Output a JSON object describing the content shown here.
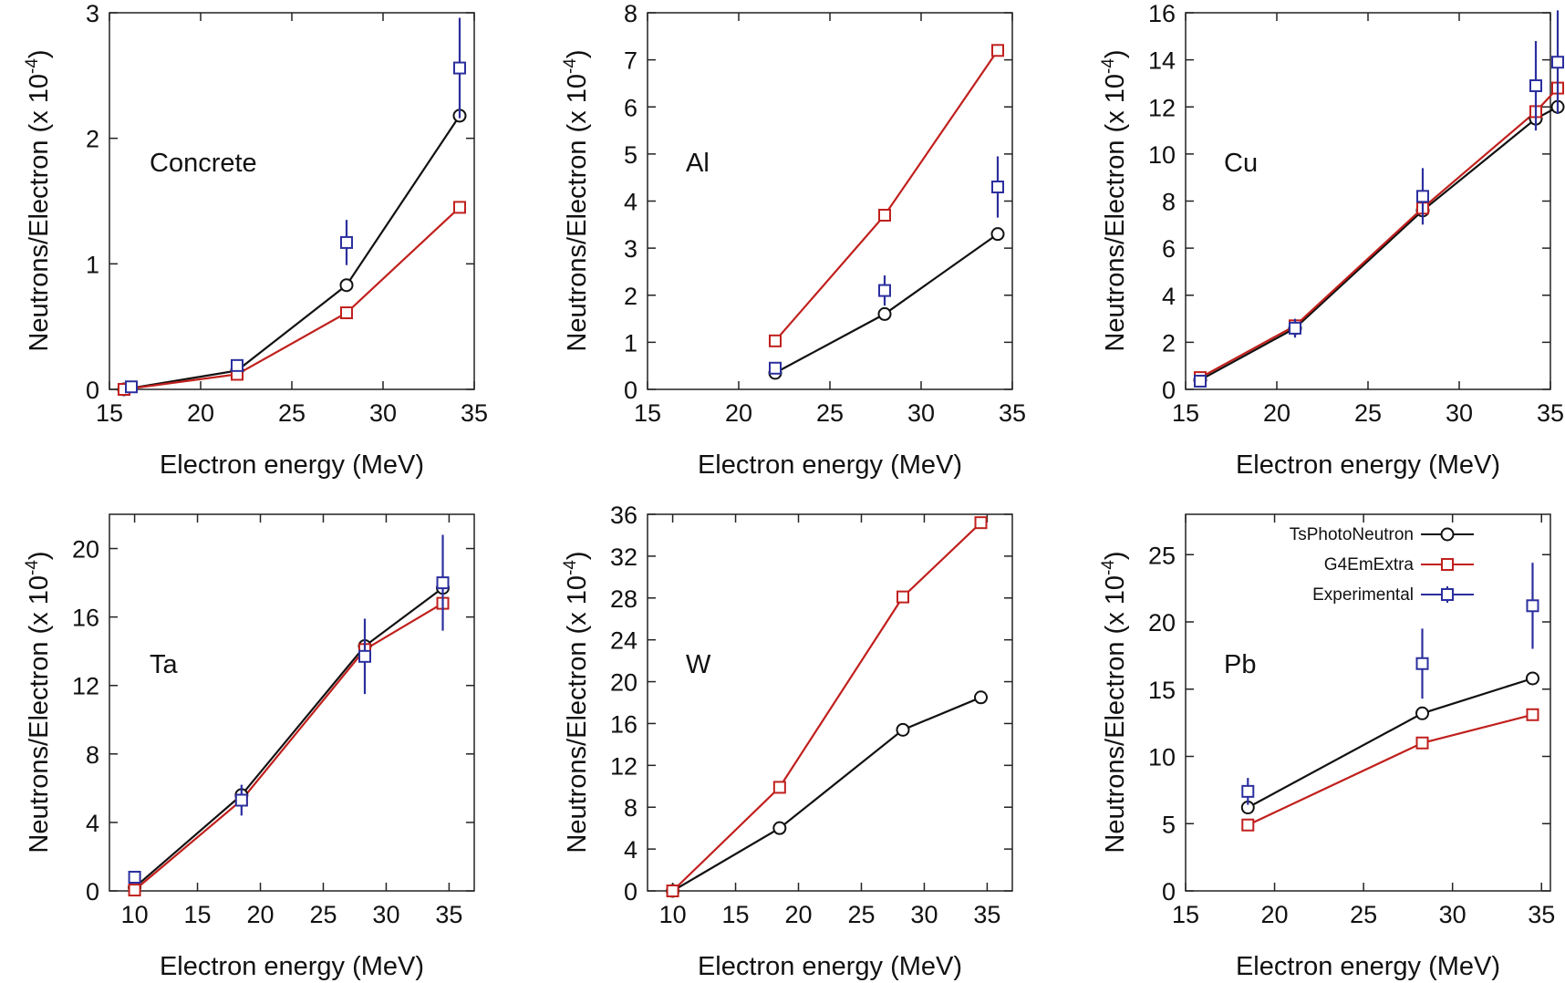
{
  "series_styles": [
    {
      "key": "tsphoto",
      "marker": "circle",
      "color": "#111111"
    },
    {
      "key": "g4em",
      "marker": "square",
      "color": "#c0201d"
    },
    {
      "key": "exp",
      "marker": "square",
      "color": "#2b2f9e",
      "errorbars": true,
      "connected": false
    }
  ],
  "legend": {
    "entries": [
      "TsPhotoNeutron",
      "G4EmExtra",
      "Experimental"
    ],
    "placement": "top-left of Pb panel"
  },
  "chart_data": [
    {
      "type": "line",
      "annotation": "Concrete",
      "xlabel": "Electron energy (MeV)",
      "ylabel_text": "Neutrons/Electron (x 10",
      "ylabel_exp": "-4",
      "ylabel_close": ")",
      "xlim": [
        15,
        35
      ],
      "ylim": [
        0,
        3
      ],
      "xticks": [
        "15",
        "20",
        "25",
        "30",
        "35"
      ],
      "yticks": [
        "0",
        "1",
        "2",
        "3"
      ],
      "series": [
        {
          "key": "tsphoto",
          "x": [
            15.8,
            22.0,
            28.0,
            34.2
          ],
          "y": [
            0.0,
            0.15,
            0.83,
            2.18
          ]
        },
        {
          "key": "g4em",
          "x": [
            15.8,
            22.0,
            28.0,
            34.2
          ],
          "y": [
            0.0,
            0.12,
            0.61,
            1.45
          ]
        },
        {
          "key": "exp",
          "x": [
            16.2,
            22.0,
            28.0,
            34.2
          ],
          "y": [
            0.02,
            0.19,
            1.17,
            2.56
          ],
          "err": [
            0.0,
            0.0,
            0.18,
            0.4
          ]
        }
      ]
    },
    {
      "type": "line",
      "annotation": "Al",
      "xlabel": "Electron energy (MeV)",
      "ylabel_text": "Neutrons/Electron (x 10",
      "ylabel_exp": "-4",
      "ylabel_close": ")",
      "xlim": [
        15,
        35
      ],
      "ylim": [
        0,
        8
      ],
      "xticks": [
        "15",
        "20",
        "25",
        "30",
        "35"
      ],
      "yticks": [
        "0",
        "1",
        "2",
        "3",
        "4",
        "5",
        "6",
        "7",
        "8"
      ],
      "series": [
        {
          "key": "tsphoto",
          "x": [
            22.0,
            28.0,
            34.2
          ],
          "y": [
            0.35,
            1.6,
            3.3
          ]
        },
        {
          "key": "g4em",
          "x": [
            22.0,
            28.0,
            34.2
          ],
          "y": [
            1.03,
            3.7,
            7.2
          ]
        },
        {
          "key": "exp",
          "x": [
            22.0,
            28.0,
            34.2
          ],
          "y": [
            0.45,
            2.1,
            4.3
          ],
          "err": [
            0.0,
            0.32,
            0.65
          ]
        }
      ]
    },
    {
      "type": "line",
      "annotation": "Cu",
      "xlabel": "Electron energy (MeV)",
      "ylabel_text": "Neutrons/Electron (x 10",
      "ylabel_exp": "-4",
      "ylabel_close": ")",
      "xlim": [
        15,
        35
      ],
      "ylim": [
        0,
        16
      ],
      "xticks": [
        "15",
        "20",
        "25",
        "30",
        "35"
      ],
      "yticks": [
        "0",
        "2",
        "4",
        "6",
        "8",
        "10",
        "12",
        "14",
        "16"
      ],
      "series": [
        {
          "key": "tsphoto",
          "x": [
            15.8,
            21.0,
            28.0,
            34.2,
            35.4
          ],
          "y": [
            0.4,
            2.6,
            7.6,
            11.5,
            12.0
          ]
        },
        {
          "key": "g4em",
          "x": [
            15.8,
            21.0,
            28.0,
            34.2,
            35.4
          ],
          "y": [
            0.5,
            2.7,
            7.7,
            11.8,
            12.8
          ]
        },
        {
          "key": "exp",
          "x": [
            15.8,
            21.0,
            28.0,
            34.2,
            35.4
          ],
          "y": [
            0.35,
            2.6,
            8.2,
            12.9,
            13.9
          ],
          "err": [
            0.0,
            0.4,
            1.2,
            1.9,
            2.2
          ]
        }
      ]
    },
    {
      "type": "line",
      "annotation": "Ta",
      "xlabel": "Electron energy (MeV)",
      "ylabel_text": "Neutrons/Electron (x 10",
      "ylabel_exp": "-4",
      "ylabel_close": ")",
      "xlim": [
        8,
        37
      ],
      "ylim": [
        0,
        22
      ],
      "xticks": [
        "10",
        "15",
        "20",
        "25",
        "30",
        "35"
      ],
      "yticks": [
        "0",
        "4",
        "8",
        "12",
        "16",
        "20"
      ],
      "series": [
        {
          "key": "tsphoto",
          "x": [
            10.0,
            18.5,
            28.3,
            34.5
          ],
          "y": [
            0.2,
            5.6,
            14.3,
            17.7
          ]
        },
        {
          "key": "g4em",
          "x": [
            10.0,
            18.5,
            28.3,
            34.5
          ],
          "y": [
            0.05,
            5.3,
            14.1,
            16.8
          ]
        },
        {
          "key": "exp",
          "x": [
            10.0,
            18.5,
            28.3,
            34.5
          ],
          "y": [
            0.8,
            5.3,
            13.7,
            18.0
          ],
          "err": [
            0.0,
            0.9,
            2.2,
            2.8
          ]
        }
      ]
    },
    {
      "type": "line",
      "annotation": "W",
      "xlabel": "Electron energy (MeV)",
      "ylabel_text": "Neutrons/Electron (x 10",
      "ylabel_exp": "-4",
      "ylabel_close": ")",
      "xlim": [
        8,
        37
      ],
      "ylim": [
        0,
        36
      ],
      "xticks": [
        "10",
        "15",
        "20",
        "25",
        "30",
        "35"
      ],
      "yticks": [
        "0",
        "4",
        "8",
        "12",
        "16",
        "20",
        "24",
        "28",
        "32",
        "36"
      ],
      "series": [
        {
          "key": "tsphoto",
          "x": [
            10.0,
            18.5,
            28.3,
            34.5
          ],
          "y": [
            0.0,
            6.0,
            15.4,
            18.5
          ]
        },
        {
          "key": "g4em",
          "x": [
            10.0,
            18.5,
            28.3,
            34.5
          ],
          "y": [
            0.0,
            9.9,
            28.1,
            35.2
          ]
        }
      ]
    },
    {
      "type": "line",
      "annotation": "Pb",
      "xlabel": "Electron energy (MeV)",
      "ylabel_text": "Neutrons/Electron (x 10",
      "ylabel_exp": "-4",
      "ylabel_close": ")",
      "xlim": [
        15,
        35.5
      ],
      "ylim": [
        0,
        28
      ],
      "xticks": [
        "15",
        "20",
        "25",
        "30",
        "35"
      ],
      "yticks": [
        "0",
        "5",
        "10",
        "15",
        "20",
        "25"
      ],
      "series": [
        {
          "key": "tsphoto",
          "x": [
            18.5,
            28.3,
            34.5
          ],
          "y": [
            6.2,
            13.2,
            15.8
          ]
        },
        {
          "key": "g4em",
          "x": [
            18.5,
            28.3,
            34.5
          ],
          "y": [
            4.9,
            11.0,
            13.1
          ]
        },
        {
          "key": "exp",
          "x": [
            18.5,
            28.3,
            34.5
          ],
          "y": [
            7.4,
            16.9,
            21.2
          ],
          "err": [
            1.0,
            2.6,
            3.2
          ]
        }
      ]
    }
  ]
}
